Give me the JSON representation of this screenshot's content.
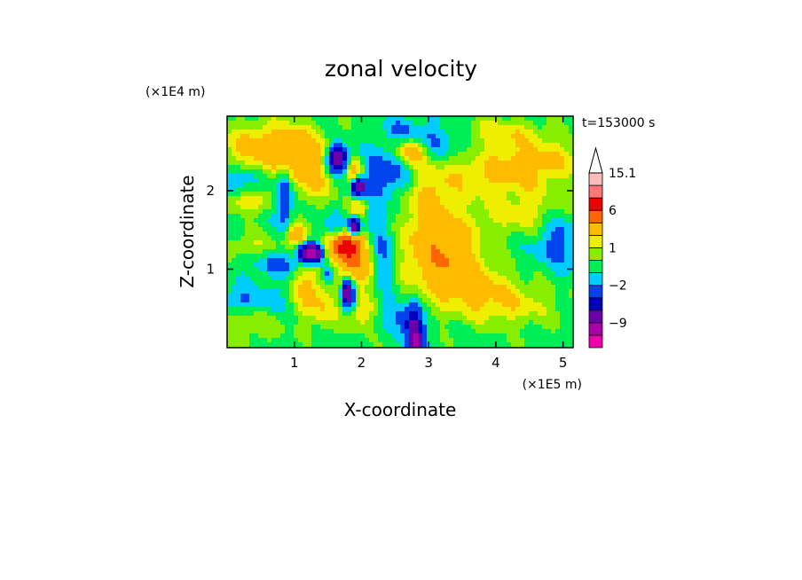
{
  "chart_data": {
    "type": "heatmap",
    "title": "zonal velocity",
    "xlabel": "X-coordinate",
    "ylabel": "Z-coordinate",
    "x_unit": "(×1E5 m)",
    "y_unit": "(×1E4 m)",
    "time_label": "t=153000 s",
    "xlim": [
      0,
      5.15
    ],
    "ylim": [
      0,
      2.95
    ],
    "x_ticks": [
      1,
      2,
      3,
      4,
      5
    ],
    "y_ticks": [
      1,
      2
    ],
    "colorbar": {
      "levels": [
        -15,
        -12,
        -9,
        -6,
        -4,
        -2,
        -1,
        0,
        1,
        2,
        4,
        6,
        9,
        12,
        15.1
      ],
      "colors": [
        "#ee00aa",
        "#aa00aa",
        "#6a00aa",
        "#0000bb",
        "#0044ee",
        "#00ccff",
        "#00ee55",
        "#88ee00",
        "#eeee00",
        "#ffbb00",
        "#ff6600",
        "#ee0000",
        "#ff7777",
        "#ffbbbb"
      ],
      "labels": [
        {
          "value": 15.1,
          "text": "15.1"
        },
        {
          "value": 6,
          "text": "6"
        },
        {
          "value": 1,
          "text": "1"
        },
        {
          "value": -2,
          "text": "−2"
        },
        {
          "value": -9,
          "text": "−9"
        }
      ],
      "extend": "max"
    },
    "background_value": -0.5,
    "features": [
      {
        "x": 0.55,
        "z": 2.55,
        "sx": 0.55,
        "sz": 0.22,
        "u": 3.0
      },
      {
        "x": 0.3,
        "z": 1.85,
        "sx": 0.25,
        "sz": 0.1,
        "u": 2.5
      },
      {
        "x": 0.35,
        "z": 1.3,
        "sx": 0.3,
        "sz": 0.12,
        "u": 1.5
      },
      {
        "x": 0.4,
        "z": 0.35,
        "sx": 0.35,
        "sz": 0.2,
        "u": 1.5
      },
      {
        "x": 0.25,
        "z": 2.15,
        "sx": 0.2,
        "sz": 0.12,
        "u": -2.0
      },
      {
        "x": 0.15,
        "z": 0.6,
        "sx": 0.2,
        "sz": 0.12,
        "u": -2.0
      },
      {
        "x": 0.75,
        "z": 1.05,
        "sx": 0.3,
        "sz": 0.1,
        "u": -2.0
      },
      {
        "x": 1.0,
        "z": 2.45,
        "sx": 0.3,
        "sz": 0.25,
        "u": 2.5
      },
      {
        "x": 1.3,
        "z": 2.1,
        "sx": 0.25,
        "sz": 0.2,
        "u": 2.0
      },
      {
        "x": 0.85,
        "z": 1.95,
        "sx": 0.08,
        "sz": 0.3,
        "u": -4.0
      },
      {
        "x": 1.05,
        "z": 1.45,
        "sx": 0.12,
        "sz": 0.1,
        "u": 4.0
      },
      {
        "x": 1.25,
        "z": 1.2,
        "sx": 0.12,
        "sz": 0.08,
        "u": -12.0
      },
      {
        "x": 1.2,
        "z": 0.8,
        "sx": 0.15,
        "sz": 0.25,
        "u": 3.0
      },
      {
        "x": 1.45,
        "z": 0.5,
        "sx": 0.15,
        "sz": 0.2,
        "u": 2.0
      },
      {
        "x": 1.5,
        "z": 0.95,
        "sx": 0.08,
        "sz": 0.1,
        "u": -3.0
      },
      {
        "x": 1.6,
        "z": 1.5,
        "sx": 0.15,
        "sz": 0.12,
        "u": -3.0
      },
      {
        "x": 1.75,
        "z": 1.3,
        "sx": 0.2,
        "sz": 0.15,
        "u": 8.0
      },
      {
        "x": 1.85,
        "z": 1.0,
        "sx": 0.15,
        "sz": 0.15,
        "u": 3.0
      },
      {
        "x": 1.8,
        "z": 0.7,
        "sx": 0.06,
        "sz": 0.12,
        "u": -9.0
      },
      {
        "x": 1.9,
        "z": 1.55,
        "sx": 0.06,
        "sz": 0.08,
        "u": -9.0
      },
      {
        "x": 1.65,
        "z": 2.4,
        "sx": 0.1,
        "sz": 0.12,
        "u": -9.0
      },
      {
        "x": 1.95,
        "z": 2.05,
        "sx": 0.06,
        "sz": 0.08,
        "u": -9.0
      },
      {
        "x": 1.9,
        "z": 2.25,
        "sx": 0.12,
        "sz": 0.12,
        "u": 4.0
      },
      {
        "x": 1.95,
        "z": 1.75,
        "sx": 0.12,
        "sz": 0.12,
        "u": 2.5
      },
      {
        "x": 2.05,
        "z": 0.95,
        "sx": 0.15,
        "sz": 0.12,
        "u": 2.0
      },
      {
        "x": 2.0,
        "z": 0.45,
        "sx": 0.15,
        "sz": 0.15,
        "u": 2.5
      },
      {
        "x": 2.3,
        "z": 2.2,
        "sx": 0.3,
        "sz": 0.2,
        "u": -3.0
      },
      {
        "x": 2.35,
        "z": 1.2,
        "sx": 0.15,
        "sz": 0.3,
        "u": -2.5
      },
      {
        "x": 2.15,
        "z": 1.65,
        "sx": 0.15,
        "sz": 0.12,
        "u": -1.5
      },
      {
        "x": 2.75,
        "z": 2.5,
        "sx": 0.15,
        "sz": 0.12,
        "u": 4.0
      },
      {
        "x": 3.1,
        "z": 2.65,
        "sx": 0.35,
        "sz": 0.15,
        "u": -2.0
      },
      {
        "x": 2.8,
        "z": 0.12,
        "sx": 0.08,
        "sz": 0.25,
        "u": -9.0
      },
      {
        "x": 2.65,
        "z": 0.35,
        "sx": 0.08,
        "sz": 0.12,
        "u": -2.5
      },
      {
        "x": 3.2,
        "z": 1.3,
        "sx": 0.5,
        "sz": 0.35,
        "u": 3.5
      },
      {
        "x": 3.5,
        "z": 0.9,
        "sx": 0.5,
        "sz": 0.3,
        "u": 2.5
      },
      {
        "x": 3.0,
        "z": 1.9,
        "sx": 0.25,
        "sz": 0.25,
        "u": 2.0
      },
      {
        "x": 3.8,
        "z": 2.2,
        "sx": 0.7,
        "sz": 0.2,
        "u": 2.0
      },
      {
        "x": 4.6,
        "z": 2.4,
        "sx": 0.5,
        "sz": 0.2,
        "u": 2.5
      },
      {
        "x": 4.9,
        "z": 1.4,
        "sx": 0.25,
        "sz": 0.25,
        "u": -2.5
      },
      {
        "x": 4.5,
        "z": 1.7,
        "sx": 0.45,
        "sz": 0.25,
        "u": 2.0
      },
      {
        "x": 4.2,
        "z": 0.55,
        "sx": 0.5,
        "sz": 0.2,
        "u": 2.0
      },
      {
        "x": 3.9,
        "z": 1.25,
        "sx": 0.4,
        "sz": 0.2,
        "u": -1.5
      },
      {
        "x": 4.0,
        "z": 2.75,
        "sx": 0.5,
        "sz": 0.12,
        "u": 2.0
      },
      {
        "x": 2.6,
        "z": 2.8,
        "sx": 0.2,
        "sz": 0.1,
        "u": -1.2
      },
      {
        "x": 0.6,
        "z": 0.55,
        "sx": 0.2,
        "sz": 0.15,
        "u": -1.5
      },
      {
        "x": 2.45,
        "z": 0.45,
        "sx": 0.15,
        "sz": 0.12,
        "u": -1.5
      }
    ]
  }
}
